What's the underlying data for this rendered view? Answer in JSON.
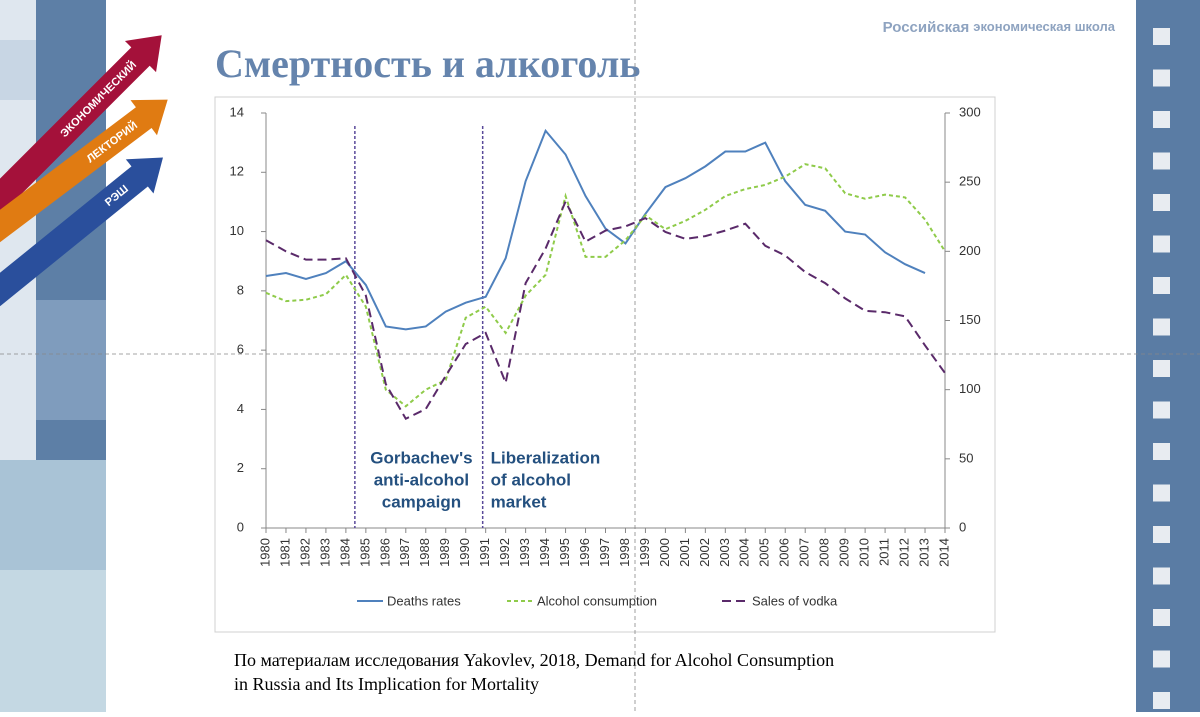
{
  "header": {
    "school_bold": "Российская",
    "school_rest": "экономическая школа",
    "title": "Смертность и алкоголь"
  },
  "logo": [
    "ЭКОНОМИЧЕСКИЙ",
    "ЛЕКТОРИЙ",
    "РЭШ"
  ],
  "source": [
    "По материалам исследования  Yakovlev, 2018, Demand for Alcohol Consumption",
    "in Russia and  Its Implication for Mortality"
  ],
  "chart_data": {
    "type": "line",
    "categories": [
      "1980",
      "1981",
      "1982",
      "1983",
      "1984",
      "1985",
      "1986",
      "1987",
      "1988",
      "1989",
      "1990",
      "1991",
      "1992",
      "1993",
      "1994",
      "1995",
      "1996",
      "1997",
      "1998",
      "1999",
      "2000",
      "2001",
      "2002",
      "2003",
      "2004",
      "2005",
      "2006",
      "2007",
      "2008",
      "2009",
      "2010",
      "2011",
      "2012",
      "2013",
      "2014"
    ],
    "ylim": [
      0,
      14
    ],
    "yticks": [
      0,
      2,
      4,
      6,
      8,
      10,
      12,
      14
    ],
    "y2lim": [
      0,
      300
    ],
    "y2ticks": [
      0,
      50,
      100,
      150,
      200,
      250,
      300
    ],
    "grid": false,
    "legend": "bottom",
    "series": [
      {
        "name": "Deaths rates",
        "color": "#4f81bd",
        "line_style": "solid",
        "values": [
          8.5,
          8.6,
          8.4,
          8.6,
          9.0,
          8.2,
          6.8,
          6.7,
          6.8,
          7.3,
          7.6,
          7.8,
          9.1,
          11.7,
          13.4,
          12.6,
          11.2,
          10.1,
          9.6,
          10.6,
          11.5,
          11.8,
          12.2,
          12.7,
          12.7,
          13.0,
          11.7,
          10.9,
          10.7,
          10.0,
          9.9,
          9.3,
          8.9,
          8.6,
          null
        ]
      },
      {
        "name": "Alcohol consumption",
        "color": "#8fcb4a",
        "line_style": "dotted",
        "axis": "y2",
        "values": [
          170,
          164,
          165,
          169,
          183,
          160,
          100,
          88,
          100,
          107,
          152,
          160,
          141,
          168,
          183,
          240,
          196,
          196,
          208,
          226,
          216,
          222,
          230,
          240,
          245,
          248,
          254,
          263,
          260,
          242,
          238,
          241,
          239,
          223,
          200
        ]
      },
      {
        "name": "Sales of vodka",
        "color": "#5a2a6a",
        "line_style": "dashed",
        "axis": "y2",
        "values": [
          208,
          200,
          194,
          194,
          195,
          168,
          104,
          79,
          86,
          110,
          133,
          141,
          105,
          177,
          202,
          236,
          207,
          215,
          218,
          224,
          214,
          209,
          211,
          215,
          220,
          204,
          197,
          185,
          177,
          166,
          157,
          156,
          153,
          132,
          112
        ]
      }
    ],
    "annotations": [
      {
        "lines": [
          "Gorbachev's",
          "anti-alcohol",
          "campaign"
        ]
      },
      {
        "lines": [
          "Liberalization",
          "of alcohol",
          "market"
        ]
      }
    ]
  }
}
